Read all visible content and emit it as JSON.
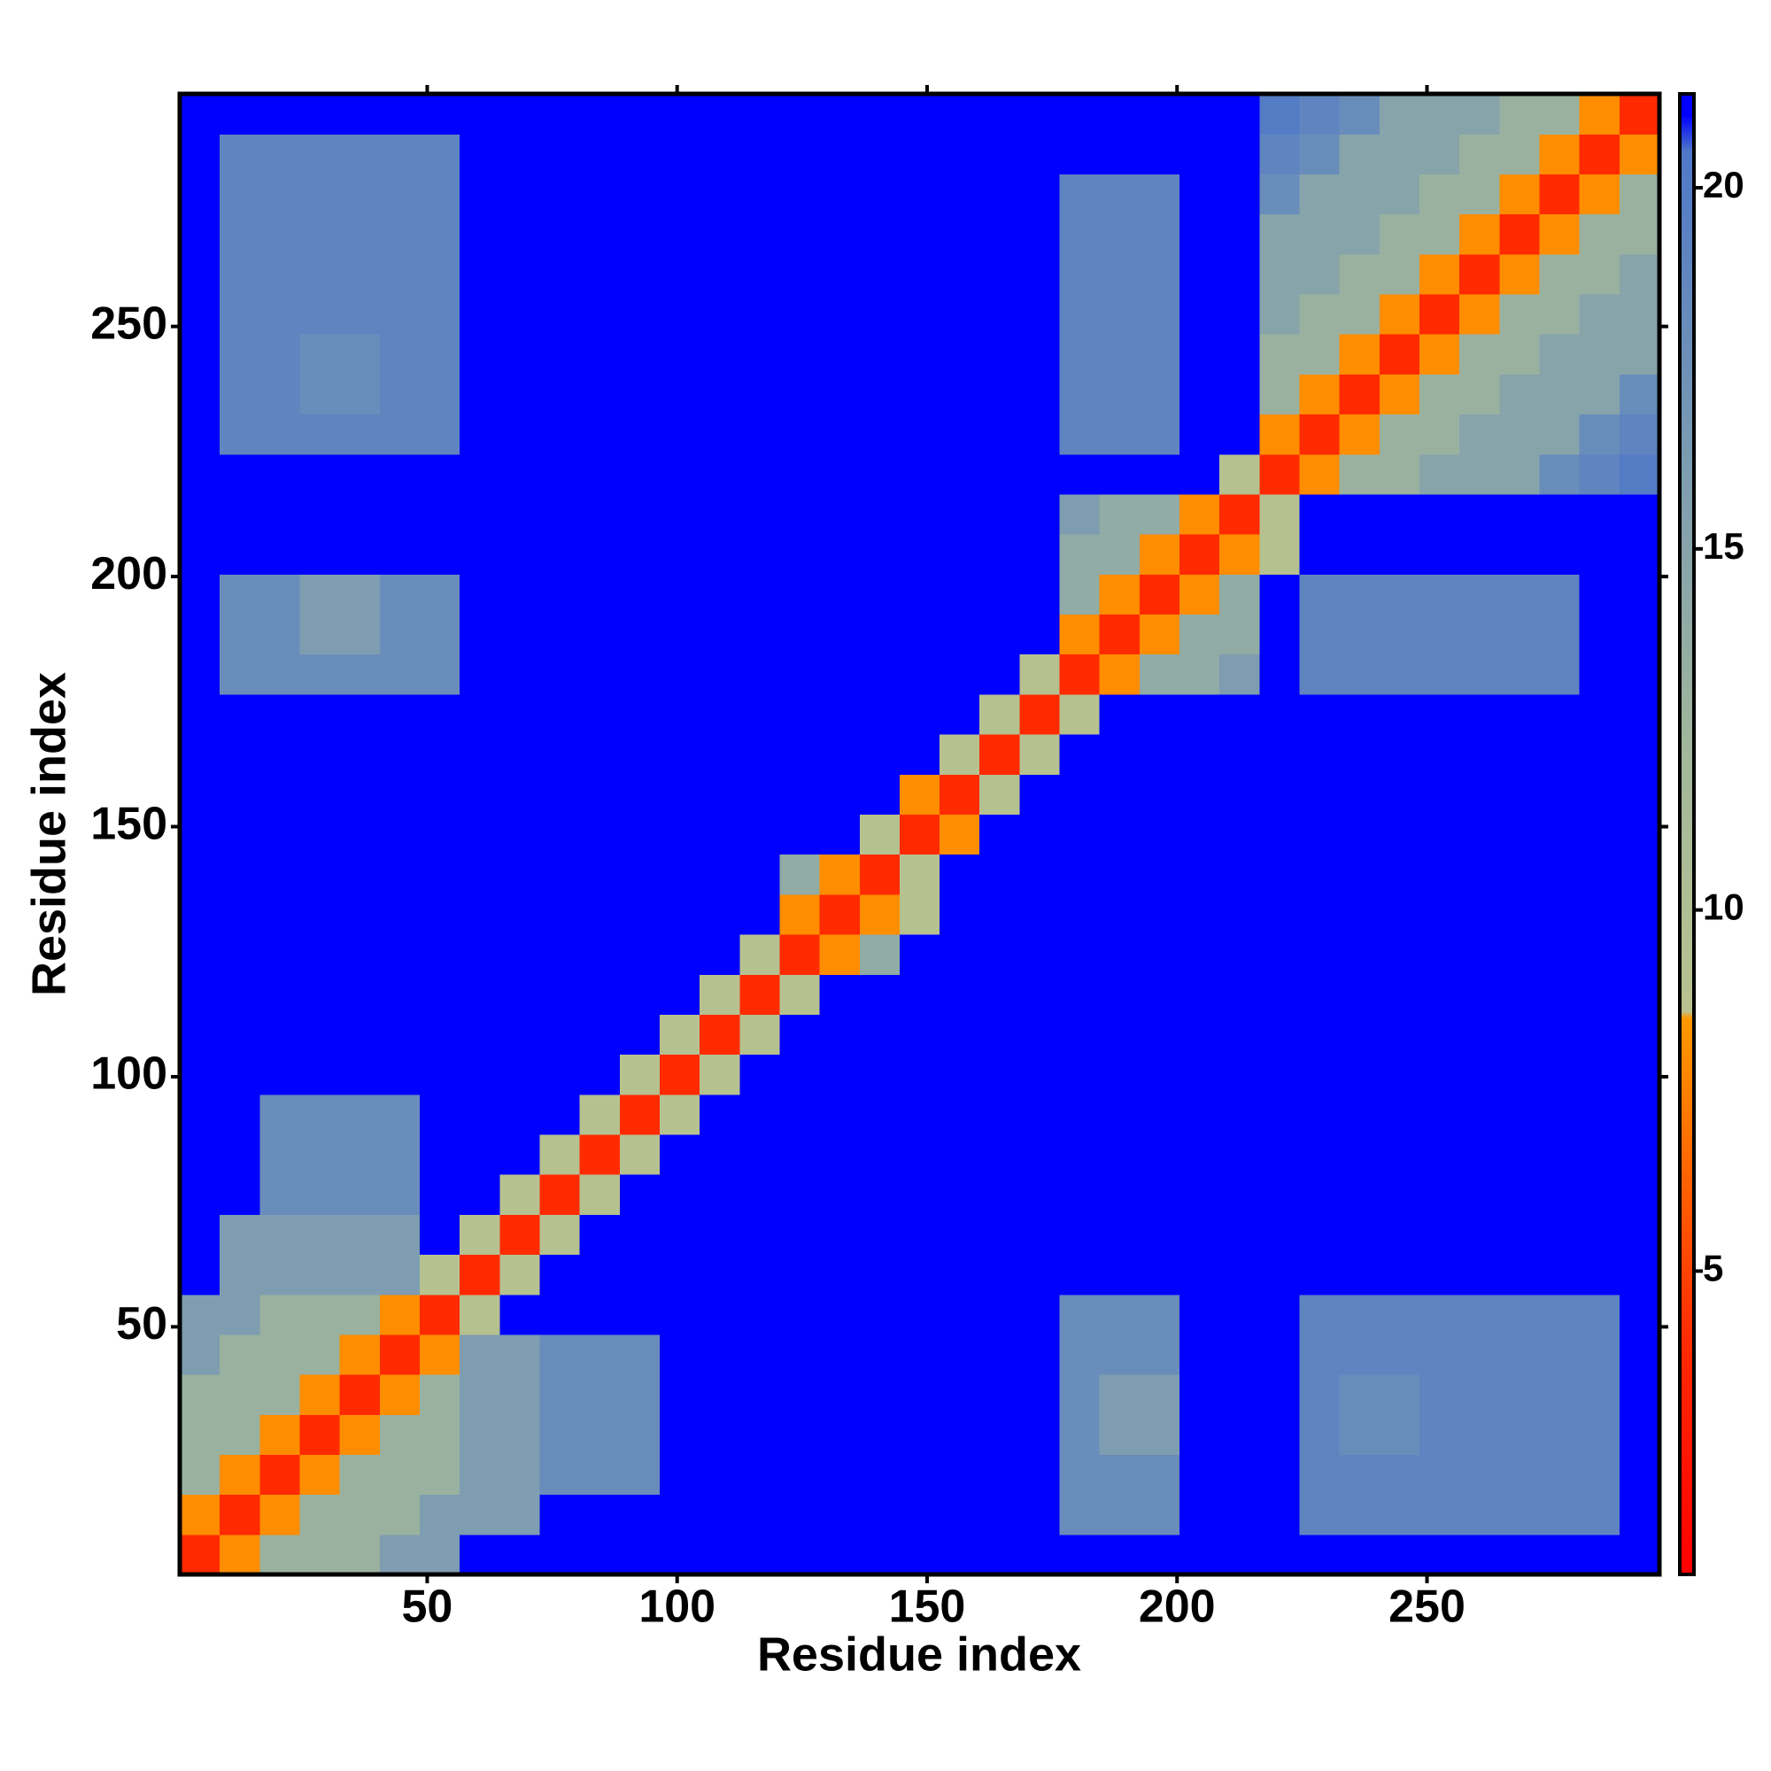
{
  "chart_data": {
    "type": "heatmap",
    "xlabel": "Residue index",
    "ylabel": "Residue index",
    "xlim": [
      0.5,
      296.5
    ],
    "ylim": [
      0.5,
      296.5
    ],
    "xticks": [
      50,
      100,
      150,
      200,
      250
    ],
    "yticks": [
      50,
      100,
      150,
      200,
      250
    ],
    "zlim": [
      0.8,
      21.3
    ],
    "zticks": [
      5,
      10,
      15,
      20
    ],
    "colorscale": [
      [
        0.8,
        "#ff0000"
      ],
      [
        4,
        "#ff2a00"
      ],
      [
        8.5,
        "#ff9900"
      ],
      [
        8.6,
        "#b9c28f"
      ],
      [
        12,
        "#a3b89a"
      ],
      [
        16,
        "#7e9db0"
      ],
      [
        20.5,
        "#4f78c8"
      ],
      [
        21,
        "#0000ff"
      ],
      [
        21.3,
        "#0000ff"
      ]
    ],
    "x": [
      4.5,
      12.5,
      20.5,
      28.5,
      36.5,
      44.5,
      52.5,
      60.5,
      68.5,
      76.5,
      84.5,
      92.5,
      100.5,
      108.5,
      116.5,
      124.5,
      132.5,
      140.5,
      148.5,
      156.5,
      164.5,
      172.5,
      180.5,
      188.5,
      196.5,
      204.5,
      212.5,
      220.5,
      228.5,
      236.5,
      244.5,
      252.5,
      260.5,
      268.5,
      276.5,
      284.5,
      292.5
    ],
    "y": [
      4.5,
      12.5,
      20.5,
      28.5,
      36.5,
      44.5,
      52.5,
      60.5,
      68.5,
      76.5,
      84.5,
      92.5,
      100.5,
      108.5,
      116.5,
      124.5,
      132.5,
      140.5,
      148.5,
      156.5,
      164.5,
      172.5,
      180.5,
      188.5,
      196.5,
      204.5,
      212.5,
      220.5,
      228.5,
      236.5,
      244.5,
      252.5,
      260.5,
      268.5,
      276.5,
      284.5,
      292.5
    ],
    "z": [
      [
        4,
        8,
        13,
        13,
        13,
        16,
        16,
        21,
        21,
        21,
        21,
        21,
        21,
        21,
        21,
        21,
        21,
        21,
        21,
        21,
        21,
        21,
        21,
        21,
        21,
        21,
        21,
        21,
        21,
        21,
        21,
        21,
        21,
        21,
        21,
        21,
        21
      ],
      [
        8,
        4,
        8,
        13,
        13,
        13,
        16,
        16,
        16,
        21,
        21,
        21,
        21,
        21,
        21,
        21,
        21,
        21,
        21,
        21,
        21,
        21,
        18,
        18,
        18,
        21,
        21,
        21,
        19,
        19,
        19,
        19,
        19,
        19,
        19,
        19,
        21
      ],
      [
        13,
        8,
        4,
        8,
        13,
        13,
        13,
        16,
        16,
        18,
        18,
        18,
        21,
        21,
        21,
        21,
        21,
        21,
        21,
        21,
        21,
        21,
        18,
        18,
        18,
        21,
        21,
        21,
        19,
        19,
        19,
        19,
        19,
        19,
        19,
        19,
        21
      ],
      [
        13,
        13,
        8,
        4,
        8,
        13,
        13,
        16,
        16,
        18,
        18,
        18,
        21,
        21,
        21,
        21,
        21,
        21,
        21,
        21,
        21,
        21,
        18,
        16,
        16,
        21,
        21,
        21,
        19,
        18,
        18,
        19,
        19,
        19,
        19,
        19,
        21
      ],
      [
        13,
        13,
        13,
        8,
        4,
        8,
        13,
        16,
        16,
        18,
        18,
        18,
        21,
        21,
        21,
        21,
        21,
        21,
        21,
        21,
        21,
        21,
        18,
        16,
        16,
        21,
        21,
        21,
        19,
        18,
        18,
        19,
        19,
        19,
        19,
        19,
        21
      ],
      [
        16,
        13,
        13,
        13,
        8,
        4,
        8,
        16,
        16,
        18,
        18,
        18,
        21,
        21,
        21,
        21,
        21,
        21,
        21,
        21,
        21,
        21,
        18,
        18,
        18,
        21,
        21,
        21,
        19,
        19,
        19,
        19,
        19,
        19,
        19,
        19,
        21
      ],
      [
        16,
        16,
        13,
        13,
        13,
        8,
        4,
        9,
        21,
        21,
        21,
        21,
        21,
        21,
        21,
        21,
        21,
        21,
        21,
        21,
        21,
        21,
        18,
        18,
        18,
        21,
        21,
        21,
        19,
        19,
        19,
        19,
        19,
        19,
        19,
        19,
        21
      ],
      [
        21,
        16,
        16,
        16,
        16,
        16,
        9,
        4,
        9,
        21,
        21,
        21,
        21,
        21,
        21,
        21,
        21,
        21,
        21,
        21,
        21,
        21,
        21,
        21,
        21,
        21,
        21,
        21,
        21,
        21,
        21,
        21,
        21,
        21,
        21,
        21,
        21
      ],
      [
        21,
        16,
        16,
        16,
        16,
        16,
        21,
        9,
        4,
        9,
        21,
        21,
        21,
        21,
        21,
        21,
        21,
        21,
        21,
        21,
        21,
        21,
        21,
        21,
        21,
        21,
        21,
        21,
        21,
        21,
        21,
        21,
        21,
        21,
        21,
        21,
        21
      ],
      [
        21,
        21,
        18,
        18,
        18,
        18,
        21,
        21,
        9,
        4,
        9,
        21,
        21,
        21,
        21,
        21,
        21,
        21,
        21,
        21,
        21,
        21,
        21,
        21,
        21,
        21,
        21,
        21,
        21,
        21,
        21,
        21,
        21,
        21,
        21,
        21,
        21
      ],
      [
        21,
        21,
        18,
        18,
        18,
        18,
        21,
        21,
        21,
        9,
        4,
        9,
        21,
        21,
        21,
        21,
        21,
        21,
        21,
        21,
        21,
        21,
        21,
        21,
        21,
        21,
        21,
        21,
        21,
        21,
        21,
        21,
        21,
        21,
        21,
        21,
        21
      ],
      [
        21,
        21,
        18,
        18,
        18,
        18,
        21,
        21,
        21,
        21,
        9,
        4,
        9,
        21,
        21,
        21,
        21,
        21,
        21,
        21,
        21,
        21,
        21,
        21,
        21,
        21,
        21,
        21,
        21,
        21,
        21,
        21,
        21,
        21,
        21,
        21,
        21
      ],
      [
        21,
        21,
        21,
        21,
        21,
        21,
        21,
        21,
        21,
        21,
        21,
        9,
        4,
        9,
        21,
        21,
        21,
        21,
        21,
        21,
        21,
        21,
        21,
        21,
        21,
        21,
        21,
        21,
        21,
        21,
        21,
        21,
        21,
        21,
        21,
        21,
        21
      ],
      [
        21,
        21,
        21,
        21,
        21,
        21,
        21,
        21,
        21,
        21,
        21,
        21,
        9,
        4,
        9,
        21,
        21,
        21,
        21,
        21,
        21,
        21,
        21,
        21,
        21,
        21,
        21,
        21,
        21,
        21,
        21,
        21,
        21,
        21,
        21,
        21,
        21
      ],
      [
        21,
        21,
        21,
        21,
        21,
        21,
        21,
        21,
        21,
        21,
        21,
        21,
        21,
        9,
        4,
        9,
        21,
        21,
        21,
        21,
        21,
        21,
        21,
        21,
        21,
        21,
        21,
        21,
        21,
        21,
        21,
        21,
        21,
        21,
        21,
        21,
        21
      ],
      [
        21,
        21,
        21,
        21,
        21,
        21,
        21,
        21,
        21,
        21,
        21,
        21,
        21,
        21,
        9,
        4,
        8,
        14,
        21,
        21,
        21,
        21,
        21,
        21,
        21,
        21,
        21,
        21,
        21,
        21,
        21,
        21,
        21,
        21,
        21,
        21,
        21
      ],
      [
        21,
        21,
        21,
        21,
        21,
        21,
        21,
        21,
        21,
        21,
        21,
        21,
        21,
        21,
        21,
        8,
        4,
        8,
        9,
        21,
        21,
        21,
        21,
        21,
        21,
        21,
        21,
        21,
        21,
        21,
        21,
        21,
        21,
        21,
        21,
        21,
        21
      ],
      [
        21,
        21,
        21,
        21,
        21,
        21,
        21,
        21,
        21,
        21,
        21,
        21,
        21,
        21,
        21,
        14,
        8,
        4,
        9,
        21,
        21,
        21,
        21,
        21,
        21,
        21,
        21,
        21,
        21,
        21,
        21,
        21,
        21,
        21,
        21,
        21,
        21
      ],
      [
        21,
        21,
        21,
        21,
        21,
        21,
        21,
        21,
        21,
        21,
        21,
        21,
        21,
        21,
        21,
        21,
        21,
        9,
        4,
        8,
        21,
        21,
        21,
        21,
        21,
        21,
        21,
        21,
        21,
        21,
        21,
        21,
        21,
        21,
        21,
        21,
        21
      ],
      [
        21,
        21,
        21,
        21,
        21,
        21,
        21,
        21,
        21,
        21,
        21,
        21,
        21,
        21,
        21,
        21,
        21,
        21,
        8,
        4,
        9,
        21,
        21,
        21,
        21,
        21,
        21,
        21,
        21,
        21,
        21,
        21,
        21,
        21,
        21,
        21,
        21
      ],
      [
        21,
        21,
        21,
        21,
        21,
        21,
        21,
        21,
        21,
        21,
        21,
        21,
        21,
        21,
        21,
        21,
        21,
        21,
        21,
        9,
        4,
        9,
        21,
        21,
        21,
        21,
        21,
        21,
        21,
        21,
        21,
        21,
        21,
        21,
        21,
        21,
        21
      ],
      [
        21,
        21,
        21,
        21,
        21,
        21,
        21,
        21,
        21,
        21,
        21,
        21,
        21,
        21,
        21,
        21,
        21,
        21,
        21,
        21,
        9,
        4,
        9,
        21,
        21,
        21,
        21,
        21,
        21,
        21,
        21,
        21,
        21,
        21,
        21,
        21,
        21
      ],
      [
        21,
        18,
        18,
        18,
        18,
        18,
        18,
        21,
        21,
        21,
        21,
        21,
        21,
        21,
        21,
        21,
        21,
        21,
        21,
        21,
        21,
        9,
        4,
        8,
        14,
        14,
        16,
        21,
        19,
        19,
        19,
        19,
        19,
        19,
        19,
        21,
        21
      ],
      [
        21,
        18,
        18,
        16,
        16,
        18,
        18,
        21,
        21,
        21,
        21,
        21,
        21,
        21,
        21,
        21,
        21,
        21,
        21,
        21,
        21,
        21,
        8,
        4,
        8,
        14,
        14,
        21,
        19,
        19,
        19,
        19,
        19,
        19,
        19,
        21,
        21
      ],
      [
        21,
        18,
        18,
        16,
        16,
        18,
        18,
        21,
        21,
        21,
        21,
        21,
        21,
        21,
        21,
        21,
        21,
        21,
        21,
        21,
        21,
        21,
        14,
        8,
        4,
        8,
        14,
        21,
        19,
        19,
        19,
        19,
        19,
        19,
        19,
        21,
        21
      ],
      [
        21,
        21,
        21,
        21,
        21,
        21,
        21,
        21,
        21,
        21,
        21,
        21,
        21,
        21,
        21,
        21,
        21,
        21,
        21,
        21,
        21,
        21,
        14,
        14,
        8,
        4,
        8,
        9,
        21,
        21,
        21,
        21,
        21,
        21,
        21,
        21,
        21
      ],
      [
        21,
        21,
        21,
        21,
        21,
        21,
        21,
        21,
        21,
        21,
        21,
        21,
        21,
        21,
        21,
        21,
        21,
        21,
        21,
        21,
        21,
        21,
        16,
        14,
        14,
        8,
        4,
        9,
        21,
        21,
        21,
        21,
        21,
        21,
        21,
        21,
        21
      ],
      [
        21,
        21,
        21,
        21,
        21,
        21,
        21,
        21,
        21,
        21,
        21,
        21,
        21,
        21,
        21,
        21,
        21,
        21,
        21,
        21,
        21,
        21,
        21,
        21,
        21,
        21,
        9,
        4,
        8,
        13,
        13,
        15,
        15,
        15,
        18,
        19,
        20
      ],
      [
        21,
        19,
        19,
        19,
        19,
        19,
        19,
        21,
        21,
        21,
        21,
        21,
        21,
        21,
        21,
        21,
        21,
        21,
        21,
        21,
        21,
        21,
        19,
        19,
        19,
        21,
        21,
        8,
        4,
        8,
        13,
        13,
        15,
        15,
        15,
        18,
        19
      ],
      [
        21,
        19,
        19,
        18,
        18,
        19,
        19,
        21,
        21,
        21,
        21,
        21,
        21,
        21,
        21,
        21,
        21,
        21,
        21,
        21,
        21,
        21,
        19,
        19,
        19,
        21,
        21,
        13,
        8,
        4,
        8,
        13,
        13,
        15,
        15,
        15,
        18
      ],
      [
        21,
        19,
        19,
        18,
        18,
        19,
        19,
        21,
        21,
        21,
        21,
        21,
        21,
        21,
        21,
        21,
        21,
        21,
        21,
        21,
        21,
        21,
        19,
        19,
        19,
        21,
        21,
        13,
        13,
        8,
        4,
        8,
        13,
        13,
        15,
        15,
        15
      ],
      [
        21,
        19,
        19,
        19,
        19,
        19,
        19,
        21,
        21,
        21,
        21,
        21,
        21,
        21,
        21,
        21,
        21,
        21,
        21,
        21,
        21,
        21,
        19,
        19,
        19,
        21,
        21,
        15,
        13,
        13,
        8,
        4,
        8,
        13,
        13,
        15,
        15
      ],
      [
        21,
        19,
        19,
        19,
        19,
        19,
        19,
        21,
        21,
        21,
        21,
        21,
        21,
        21,
        21,
        21,
        21,
        21,
        21,
        21,
        21,
        21,
        19,
        19,
        19,
        21,
        21,
        15,
        15,
        13,
        13,
        8,
        4,
        8,
        13,
        13,
        15
      ],
      [
        21,
        19,
        19,
        19,
        19,
        19,
        19,
        21,
        21,
        21,
        21,
        21,
        21,
        21,
        21,
        21,
        21,
        21,
        21,
        21,
        21,
        21,
        19,
        19,
        19,
        21,
        21,
        15,
        15,
        15,
        13,
        13,
        8,
        4,
        8,
        13,
        13
      ],
      [
        21,
        19,
        19,
        19,
        19,
        19,
        19,
        21,
        21,
        21,
        21,
        21,
        21,
        21,
        21,
        21,
        21,
        21,
        21,
        21,
        21,
        21,
        19,
        19,
        19,
        21,
        21,
        18,
        15,
        15,
        15,
        13,
        13,
        8,
        4,
        8,
        13
      ],
      [
        21,
        19,
        19,
        19,
        19,
        19,
        19,
        21,
        21,
        21,
        21,
        21,
        21,
        21,
        21,
        21,
        21,
        21,
        21,
        21,
        21,
        21,
        21,
        21,
        21,
        21,
        21,
        19,
        18,
        15,
        15,
        15,
        13,
        13,
        8,
        4,
        8
      ],
      [
        21,
        21,
        21,
        21,
        21,
        21,
        21,
        21,
        21,
        21,
        21,
        21,
        21,
        21,
        21,
        21,
        21,
        21,
        21,
        21,
        21,
        21,
        21,
        21,
        21,
        21,
        21,
        20,
        19,
        18,
        15,
        15,
        15,
        13,
        13,
        8,
        4
      ]
    ]
  }
}
